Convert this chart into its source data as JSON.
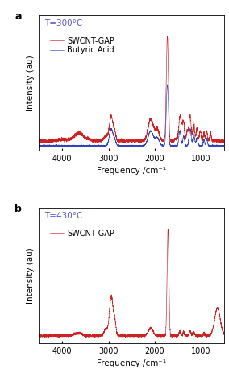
{
  "panel_a": {
    "title": "T=300°C",
    "title_color": "#5555cc",
    "legend": [
      "SWCNT-GAP",
      "Butyric Acid"
    ],
    "legend_colors": [
      "#cc2222",
      "#3344bb"
    ],
    "xlabel": "Frequency /cm⁻¹",
    "ylabel": "Intensity (au)",
    "xmin": 4500,
    "xmax": 500,
    "label": "a"
  },
  "panel_b": {
    "title": "T=430°C",
    "title_color": "#5555cc",
    "legend": [
      "SWCNT-GAP"
    ],
    "legend_colors": [
      "#cc2222"
    ],
    "xlabel": "Frequency /cm⁻¹",
    "ylabel": "Intensity (au)",
    "xmin": 4500,
    "xmax": 500,
    "label": "b"
  },
  "background_color": "#ffffff",
  "red_color": "#cc2222",
  "blue_color": "#3344bb",
  "tick_fontsize": 7,
  "label_fontsize": 7.5,
  "legend_fontsize": 7,
  "title_fontsize": 7.5
}
